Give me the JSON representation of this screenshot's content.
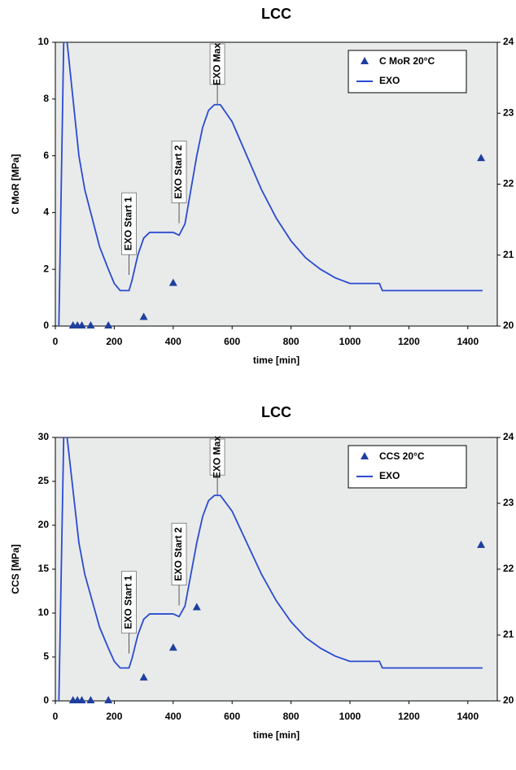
{
  "chart_data": [
    {
      "type": "scatter",
      "title": "LCC",
      "y_label": "C MoR [MPa]",
      "x_label": "time [min]",
      "xlim": [
        0,
        1500
      ],
      "xticks": [
        0,
        200,
        400,
        600,
        800,
        1000,
        1200,
        1400
      ],
      "ylim": [
        0,
        10
      ],
      "yticks": [
        0,
        2,
        4,
        6,
        8,
        10
      ],
      "y2lim": [
        20,
        24
      ],
      "y2ticks": [
        20,
        21,
        22,
        23,
        24
      ],
      "legend": "upper right",
      "series": [
        {
          "name": "C MoR 20°C",
          "type": "scatter",
          "color": "#1f3f9e",
          "x": [
            60,
            75,
            90,
            120,
            180,
            300,
            400,
            1445
          ],
          "values": [
            0,
            0,
            0,
            0,
            0,
            0.3,
            1.5,
            5.9
          ]
        },
        {
          "name": "EXO",
          "type": "line",
          "axis": "y2",
          "color": "#2a4bd0",
          "x": [
            12,
            30,
            40,
            60,
            80,
            100,
            120,
            150,
            180,
            200,
            220,
            250,
            260,
            280,
            300,
            320,
            400,
            420,
            440,
            460,
            480,
            500,
            520,
            540,
            560,
            600,
            650,
            700,
            750,
            800,
            850,
            900,
            950,
            1000,
            1100,
            1110,
            1450
          ],
          "values": [
            20,
            24.4,
            24,
            23.2,
            22.4,
            21.92,
            21.6,
            21.12,
            20.8,
            20.6,
            20.5,
            20.5,
            20.64,
            21,
            21.24,
            21.32,
            21.32,
            21.28,
            21.44,
            21.92,
            22.4,
            22.8,
            23.04,
            23.12,
            23.12,
            22.88,
            22.4,
            21.92,
            21.52,
            21.2,
            20.96,
            20.8,
            20.68,
            20.6,
            20.6,
            20.5,
            20.5
          ]
        }
      ],
      "annotations": [
        {
          "text": "EXO Start 1",
          "x": 250,
          "y": 20.72
        },
        {
          "text": "EXO Start 2",
          "x": 420,
          "y": 21.45
        },
        {
          "text": "EXO Max",
          "x": 550,
          "y": 23.12
        }
      ]
    },
    {
      "type": "scatter",
      "title": "LCC",
      "y_label": "CCS [MPa]",
      "x_label": "time [min]",
      "xlim": [
        0,
        1500
      ],
      "xticks": [
        0,
        200,
        400,
        600,
        800,
        1000,
        1200,
        1400
      ],
      "ylim": [
        0,
        30
      ],
      "yticks": [
        0,
        5,
        10,
        15,
        20,
        25,
        30
      ],
      "y2lim": [
        20,
        24
      ],
      "y2ticks": [
        20,
        21,
        22,
        23,
        24
      ],
      "legend": "upper right",
      "series": [
        {
          "name": "CCS 20°C",
          "type": "scatter",
          "color": "#1f3f9e",
          "x": [
            60,
            75,
            90,
            120,
            180,
            300,
            400,
            480,
            1445
          ],
          "values": [
            0,
            0,
            0,
            0,
            0,
            2.6,
            6.0,
            10.6,
            17.7
          ]
        },
        {
          "name": "EXO",
          "type": "line",
          "axis": "y2",
          "color": "#2a4bd0",
          "x": [
            12,
            30,
            40,
            60,
            80,
            100,
            120,
            150,
            180,
            200,
            220,
            250,
            260,
            280,
            300,
            320,
            400,
            420,
            440,
            460,
            480,
            500,
            520,
            540,
            560,
            600,
            650,
            700,
            750,
            800,
            850,
            900,
            950,
            1000,
            1100,
            1110,
            1450
          ],
          "values": [
            20,
            24.4,
            24,
            23.2,
            22.4,
            21.92,
            21.6,
            21.12,
            20.8,
            20.6,
            20.5,
            20.5,
            20.64,
            21,
            21.24,
            21.32,
            21.32,
            21.28,
            21.44,
            21.92,
            22.4,
            22.8,
            23.04,
            23.12,
            23.12,
            22.88,
            22.4,
            21.92,
            21.52,
            21.2,
            20.96,
            20.8,
            20.68,
            20.6,
            20.6,
            20.5,
            20.5
          ]
        }
      ],
      "annotations": [
        {
          "text": "EXO Start 1",
          "x": 250,
          "y": 20.72
        },
        {
          "text": "EXO Start 2",
          "x": 420,
          "y": 21.45
        },
        {
          "text": "EXO Max",
          "x": 550,
          "y": 23.12
        }
      ]
    }
  ]
}
